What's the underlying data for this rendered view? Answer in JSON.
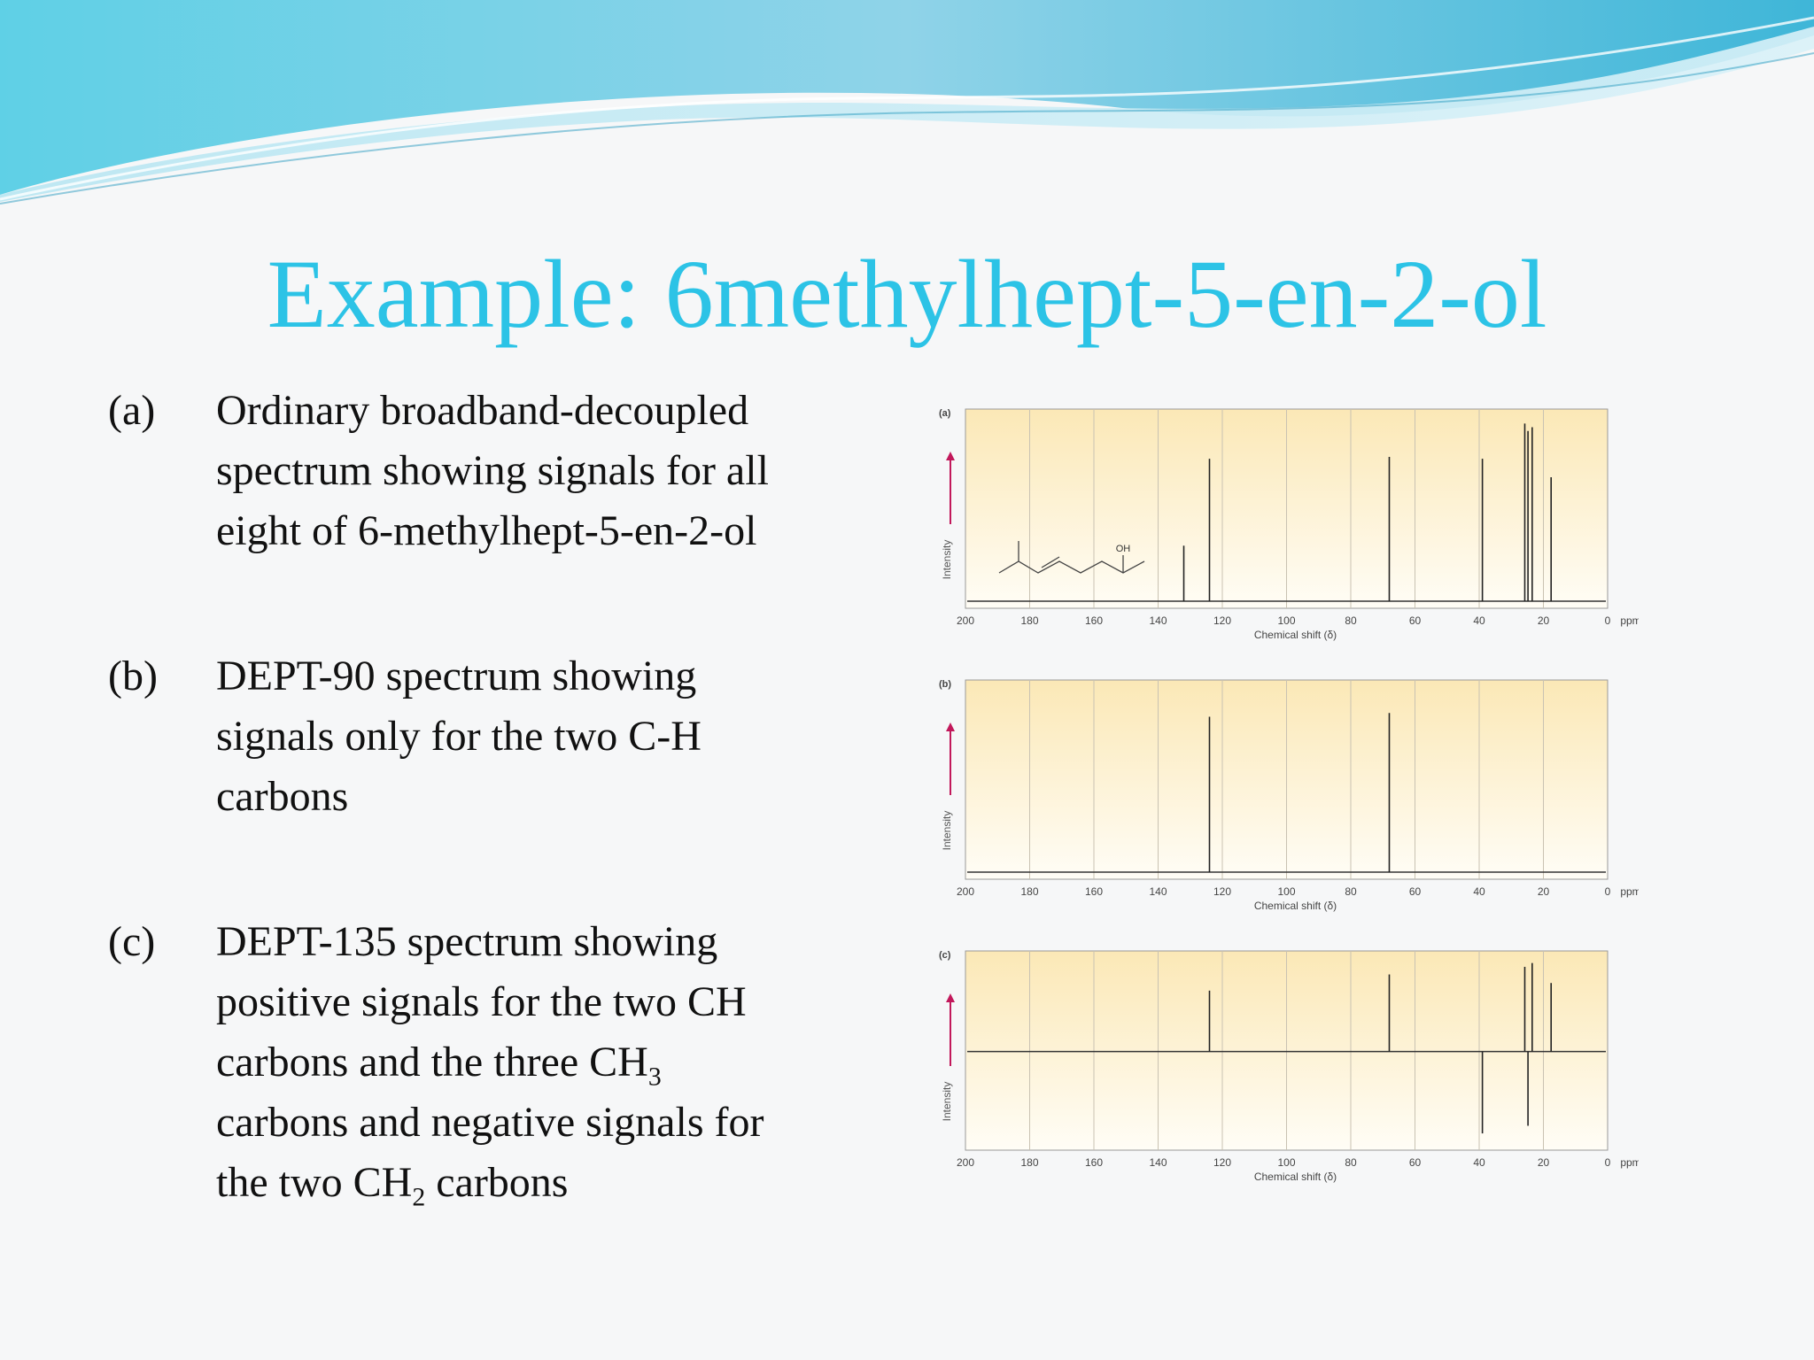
{
  "title": "Example: 6methylhept-5-en-2-ol",
  "items": [
    {
      "label": "(a)",
      "lines": [
        "Ordinary broadband-decoupled",
        "spectrum showing signals for all",
        "eight of 6-methylhept-5-en-2-ol"
      ]
    },
    {
      "label": "(b)",
      "lines": [
        "DEPT-90 spectrum showing",
        "signals only for the two C-H",
        "carbons"
      ]
    },
    {
      "label": "(c)",
      "line1": "DEPT-135 spectrum showing",
      "line2": "positive signals for the two CH",
      "line3_pre": "carbons and the three CH",
      "line3_sub": "3",
      "line4": "carbons and negative signals for",
      "line5_pre": "the two CH",
      "line5_sub": "2",
      "line5_post": " carbons"
    }
  ],
  "chart_data": [
    {
      "type": "bar",
      "panel_label": "(a)",
      "ylabel": "Intensity",
      "xlabel": "Chemical shift (δ)",
      "x_unit": "ppm",
      "xlim": [
        200,
        0
      ],
      "x_ticks": [
        "200",
        "180",
        "160",
        "140",
        "120",
        "100",
        "80",
        "60",
        "40",
        "20",
        "0"
      ],
      "molecule_label": "OH",
      "peaks": [
        {
          "x": 132,
          "y": 0.3
        },
        {
          "x": 124,
          "y": 0.77
        },
        {
          "x": 68,
          "y": 0.78
        },
        {
          "x": 39,
          "y": 0.77
        },
        {
          "x": 25.8,
          "y": 0.96
        },
        {
          "x": 24.8,
          "y": 0.92
        },
        {
          "x": 23.5,
          "y": 0.94
        },
        {
          "x": 17.6,
          "y": 0.67
        }
      ]
    },
    {
      "type": "bar",
      "panel_label": "(b)",
      "ylabel": "Intensity",
      "xlabel": "Chemical shift (δ)",
      "x_unit": "ppm",
      "xlim": [
        200,
        0
      ],
      "x_ticks": [
        "200",
        "180",
        "160",
        "140",
        "120",
        "100",
        "80",
        "60",
        "40",
        "20",
        "0"
      ],
      "peaks": [
        {
          "x": 124,
          "y": 0.84
        },
        {
          "x": 68,
          "y": 0.86
        }
      ]
    },
    {
      "type": "bar",
      "panel_label": "(c)",
      "ylabel": "Intensity",
      "xlabel": "Chemical shift (δ)",
      "x_unit": "ppm",
      "xlim": [
        200,
        0
      ],
      "x_ticks": [
        "200",
        "180",
        "160",
        "140",
        "120",
        "100",
        "80",
        "60",
        "40",
        "20",
        "0"
      ],
      "peaks": [
        {
          "x": 124,
          "y": 0.64
        },
        {
          "x": 68,
          "y": 0.81
        },
        {
          "x": 39,
          "y": -0.86
        },
        {
          "x": 25.8,
          "y": 0.89
        },
        {
          "x": 24.8,
          "y": -0.78
        },
        {
          "x": 23.5,
          "y": 0.93
        },
        {
          "x": 17.6,
          "y": 0.72
        }
      ]
    }
  ]
}
